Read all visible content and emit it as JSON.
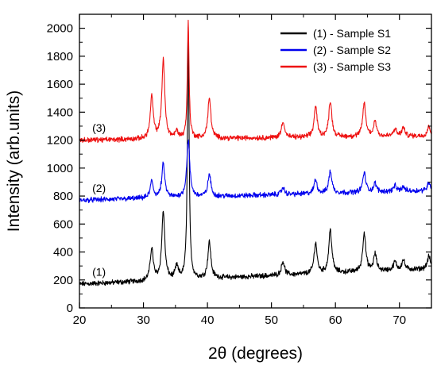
{
  "chart_data": {
    "type": "line",
    "xlabel": "2θ (degrees)",
    "ylabel": "Intensity (arb.units)",
    "xlim": [
      20,
      75
    ],
    "ylim": [
      0,
      2100
    ],
    "x_ticks": [
      "20",
      "30",
      "40",
      "50",
      "60",
      "70"
    ],
    "y_ticks": [
      "0",
      "200",
      "400",
      "600",
      "800",
      "1000",
      "1200",
      "1400",
      "1600",
      "1800",
      "2000"
    ],
    "grid": false,
    "legend_position": "top-right",
    "legend": [
      "(1) - Sample S1",
      "(2) - Sample S2",
      "(3) - Sample S3"
    ],
    "series": [
      {
        "name": "(1) - Sample S1",
        "tag": "(1)",
        "color": "#000000",
        "baseline_start": 170,
        "baseline_end": 280,
        "peaks": [
          {
            "x": 31.3,
            "height": 230
          },
          {
            "x": 33.1,
            "height": 490
          },
          {
            "x": 35.2,
            "height": 90
          },
          {
            "x": 37.0,
            "height": 1790
          },
          {
            "x": 40.3,
            "height": 260
          },
          {
            "x": 51.8,
            "height": 100
          },
          {
            "x": 56.9,
            "height": 220
          },
          {
            "x": 59.2,
            "height": 310
          },
          {
            "x": 64.5,
            "height": 280
          },
          {
            "x": 66.2,
            "height": 120
          },
          {
            "x": 69.3,
            "height": 60
          },
          {
            "x": 70.6,
            "height": 70
          },
          {
            "x": 74.6,
            "height": 90
          }
        ]
      },
      {
        "name": "(2) - Sample S2",
        "tag": "(2)",
        "color": "#0000ee",
        "baseline_start": 770,
        "baseline_end": 840,
        "peaks": [
          {
            "x": 31.3,
            "height": 120
          },
          {
            "x": 33.1,
            "height": 240
          },
          {
            "x": 37.0,
            "height": 410
          },
          {
            "x": 40.3,
            "height": 160
          },
          {
            "x": 51.8,
            "height": 50
          },
          {
            "x": 56.9,
            "height": 100
          },
          {
            "x": 59.2,
            "height": 160
          },
          {
            "x": 64.5,
            "height": 140
          },
          {
            "x": 66.2,
            "height": 60
          },
          {
            "x": 69.3,
            "height": 40
          },
          {
            "x": 70.6,
            "height": 30
          },
          {
            "x": 74.6,
            "height": 60
          }
        ]
      },
      {
        "name": "(3) - Sample S3",
        "tag": "(3)",
        "color": "#ee1111",
        "baseline_start": 1200,
        "baseline_end": 1230,
        "peaks": [
          {
            "x": 31.3,
            "height": 300
          },
          {
            "x": 33.1,
            "height": 560
          },
          {
            "x": 35.2,
            "height": 50
          },
          {
            "x": 37.0,
            "height": 840
          },
          {
            "x": 40.3,
            "height": 290
          },
          {
            "x": 51.8,
            "height": 120
          },
          {
            "x": 56.9,
            "height": 220
          },
          {
            "x": 59.2,
            "height": 260
          },
          {
            "x": 64.5,
            "height": 240
          },
          {
            "x": 66.2,
            "height": 110
          },
          {
            "x": 69.3,
            "height": 50
          },
          {
            "x": 70.6,
            "height": 60
          },
          {
            "x": 74.6,
            "height": 70
          }
        ]
      }
    ]
  }
}
